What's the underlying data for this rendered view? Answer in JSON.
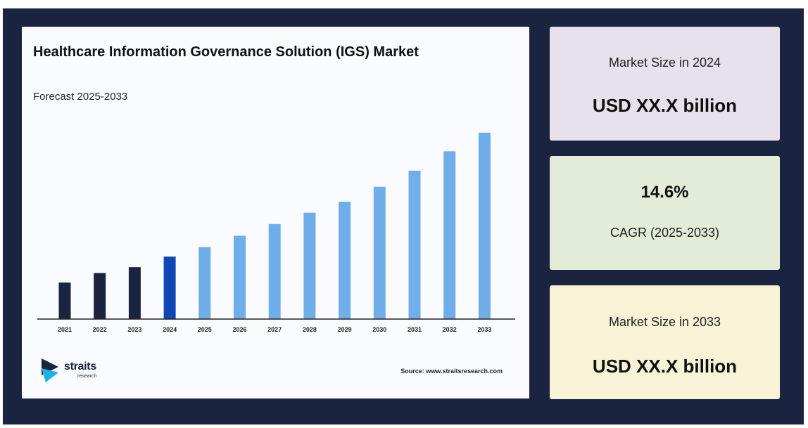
{
  "colors": {
    "frame": "#1a2340",
    "historical": "#1a2340",
    "current": "#0f47b5",
    "forecast": "#6faee9",
    "card1": "#e7e1ec",
    "card2": "#e2ecd9",
    "card3": "#f8f2d6"
  },
  "chart_data": {
    "type": "bar",
    "title": "Healthcare Information Governance Solution (IGS) Market",
    "subtitle": "Forecast 2025-2033",
    "categories": [
      "2021",
      "2022",
      "2023",
      "2024",
      "2025",
      "2026",
      "2027",
      "2028",
      "2029",
      "2030",
      "2031",
      "2032",
      "2033"
    ],
    "values": [
      1.0,
      1.26,
      1.42,
      1.71,
      1.97,
      2.28,
      2.6,
      2.91,
      3.21,
      3.62,
      4.06,
      4.59,
      5.1
    ],
    "bar_groups": [
      "historical",
      "historical",
      "historical",
      "current",
      "forecast",
      "forecast",
      "forecast",
      "forecast",
      "forecast",
      "forecast",
      "forecast",
      "forecast",
      "forecast"
    ],
    "ylim": [
      0,
      5.5
    ],
    "grid": false,
    "legend": "none",
    "source": "Source: www.straitsresearch.com"
  },
  "brand": {
    "name": "straits",
    "tagline": "research"
  },
  "stats": [
    {
      "label": "Market Size in 2024",
      "value": "USD XX.X billion"
    },
    {
      "value": "14.6%",
      "label": "CAGR (2025-2033)"
    },
    {
      "label": "Market Size in 2033",
      "value": "USD XX.X billion"
    }
  ]
}
